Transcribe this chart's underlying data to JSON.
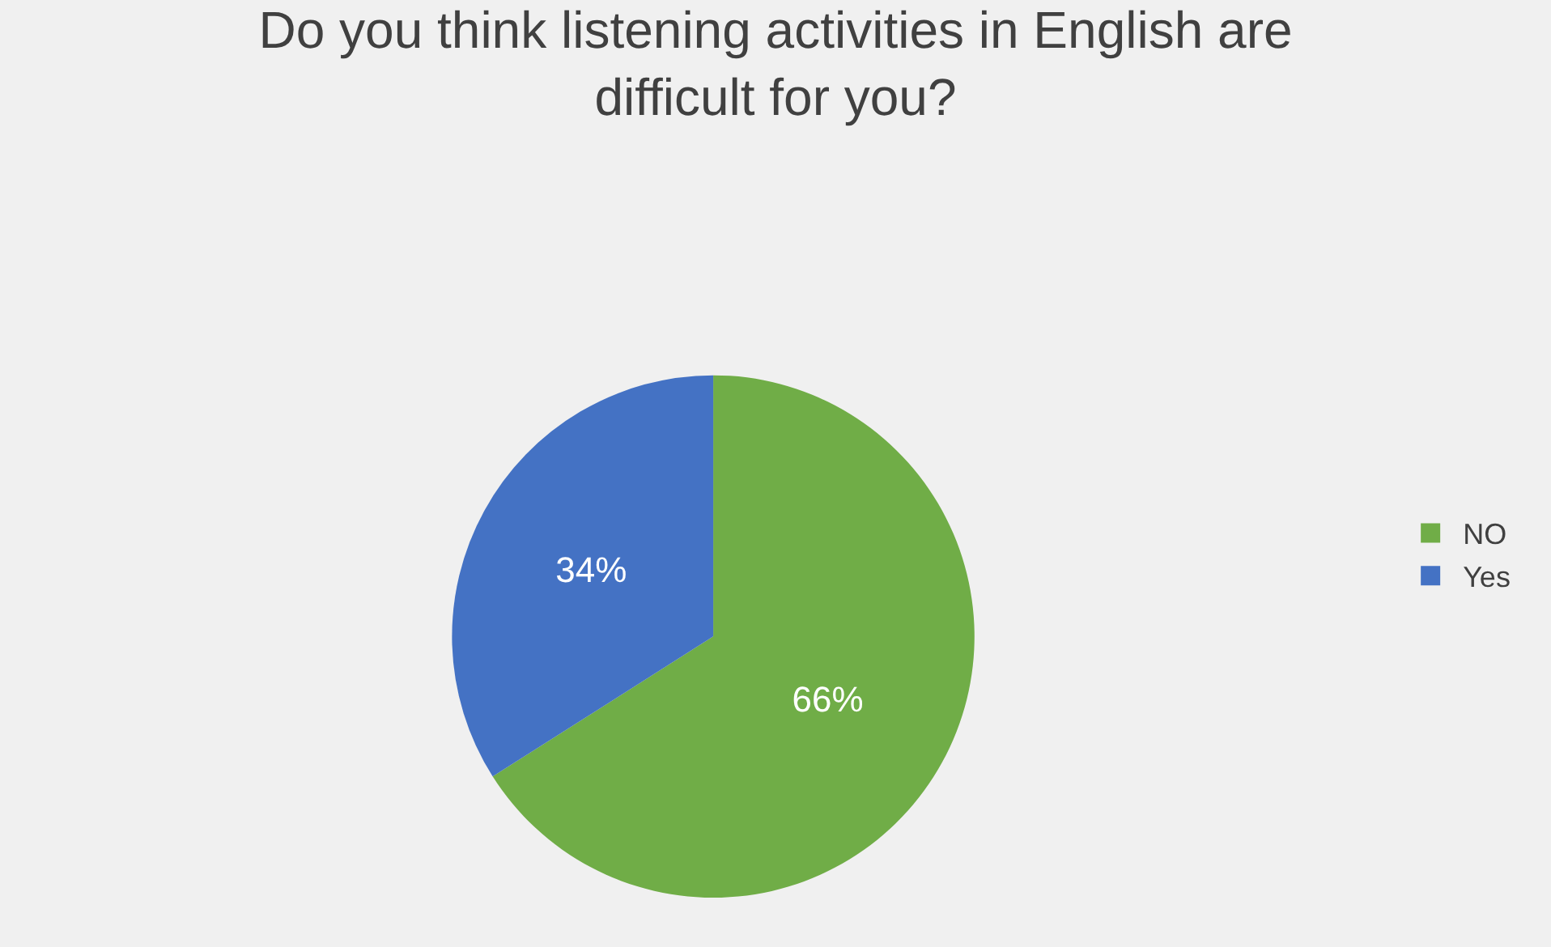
{
  "chart_data": {
    "type": "pie",
    "title": "Do you think listening activities in English are difficult for you?",
    "categories": [
      "NO",
      "Yes"
    ],
    "values": [
      66,
      34
    ],
    "colors": [
      "#70ad47",
      "#4472c4"
    ],
    "value_labels": [
      "66%",
      "34%"
    ],
    "legend": "right"
  }
}
